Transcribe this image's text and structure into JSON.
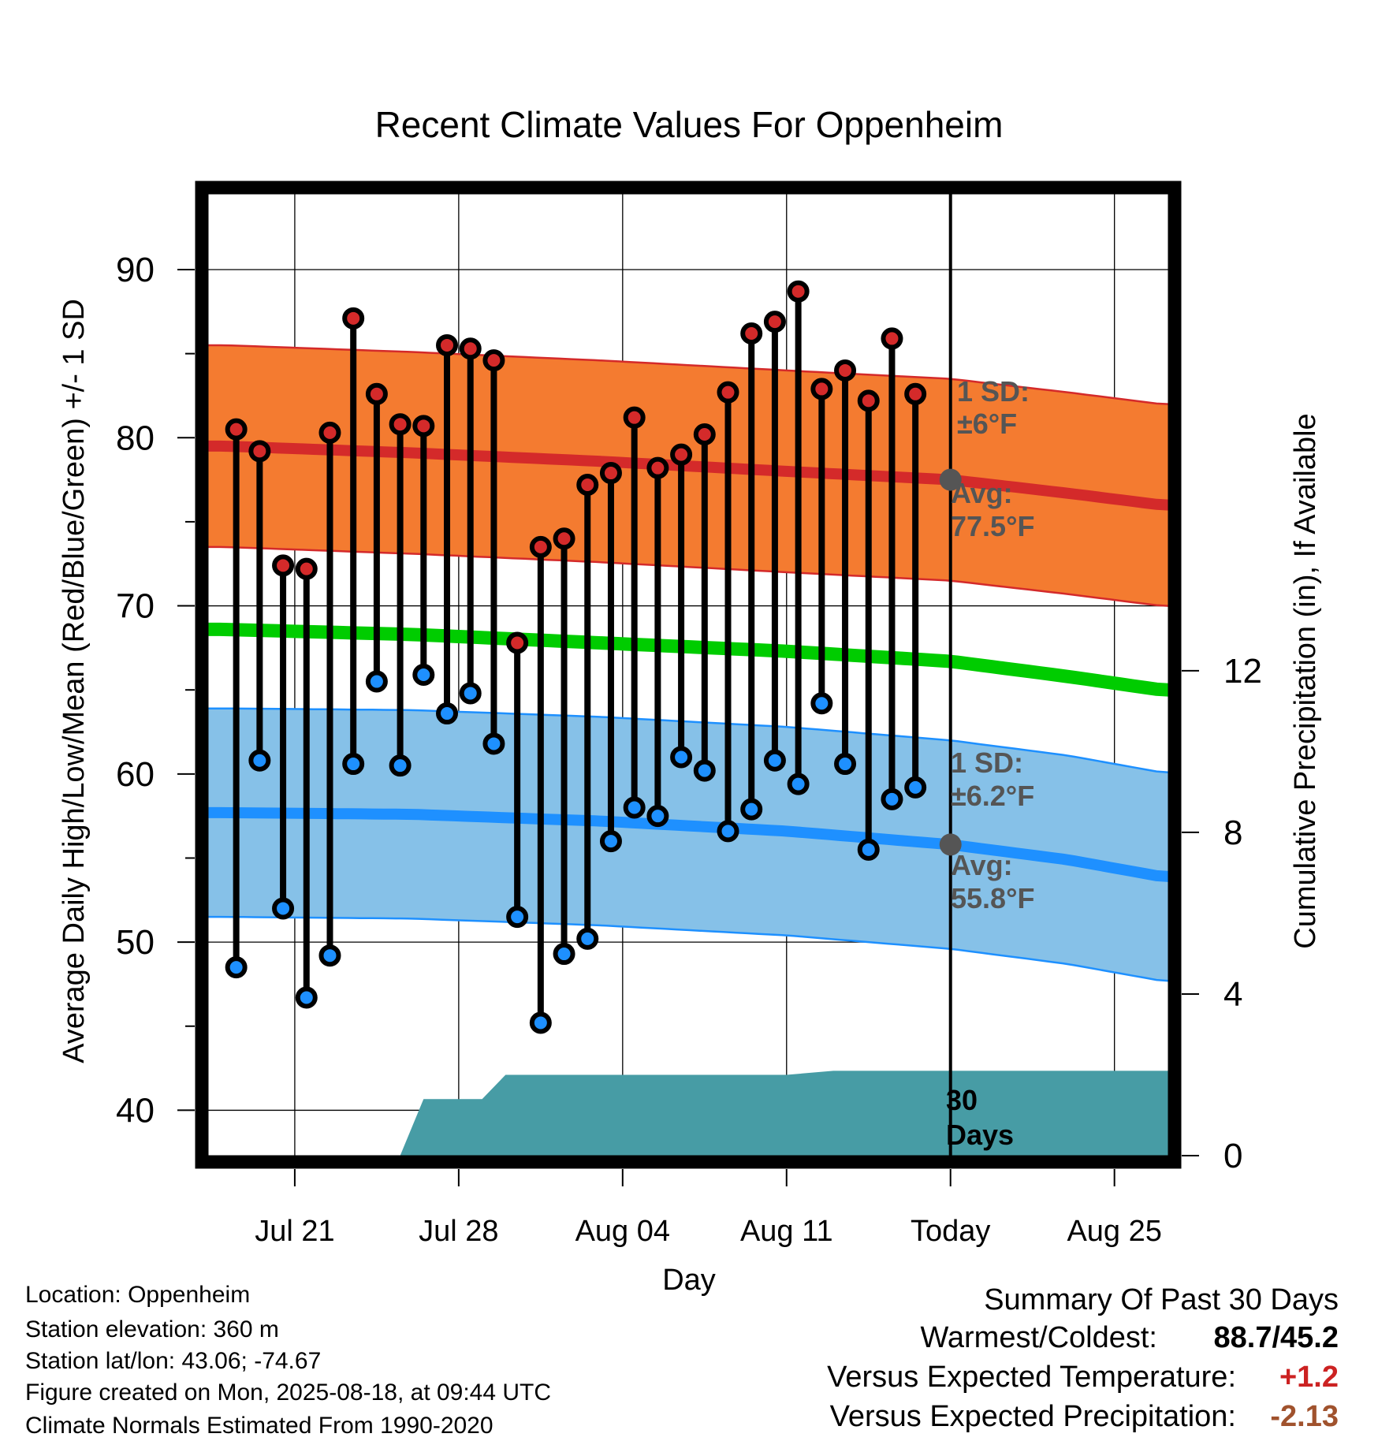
{
  "chart_data": {
    "type": "line",
    "title": "Recent Climate Values For Oppenheim",
    "xlabel": "Day",
    "ylabel_left": "Average Daily High/Low/Mean (Red/Blue/Green) +/- 1 SD",
    "ylabel_right": "Cumulative Precipitation (in), If Available",
    "y_left_ticks": [
      "40",
      "50",
      "60",
      "70",
      "80",
      "90"
    ],
    "y_right_ticks": [
      "0",
      "4",
      "8",
      "12"
    ],
    "x_ticks": [
      {
        "day": 3,
        "label": "Jul 21"
      },
      {
        "day": 10,
        "label": "Jul 28"
      },
      {
        "day": 17,
        "label": "Aug 04"
      },
      {
        "day": 24,
        "label": "Aug 11"
      },
      {
        "day": 31,
        "label": "Today"
      },
      {
        "day": 38,
        "label": "Aug 25"
      }
    ],
    "ylim_left": [
      37.3,
      94.5
    ],
    "ylim_right": [
      0,
      23.8
    ],
    "xlim": [
      -0.7,
      40.3
    ],
    "today_day": 31,
    "normals": {
      "days": [
        0,
        8,
        16,
        24,
        31,
        36,
        40
      ],
      "high_avg": [
        79.5,
        79.1,
        78.6,
        78.0,
        77.5,
        76.7,
        76.0
      ],
      "high_sd": 6,
      "mean_avg": [
        68.6,
        68.3,
        67.8,
        67.3,
        66.7,
        65.8,
        65.0
      ],
      "low_avg": [
        57.7,
        57.6,
        57.2,
        56.6,
        55.8,
        54.9,
        53.9
      ],
      "low_sd": 6.2
    },
    "series": [
      {
        "name": "High",
        "color": "#d42a2a",
        "values": [
          80.5,
          79.2,
          72.4,
          72.2,
          80.3,
          87.1,
          82.6,
          80.8,
          80.7,
          85.5,
          85.3,
          84.6,
          67.8,
          73.5,
          74.0,
          77.2,
          77.9,
          81.2,
          78.2,
          79.0,
          80.2,
          82.7,
          86.2,
          86.9,
          88.7,
          82.9,
          84.0,
          82.2,
          85.9,
          82.6
        ]
      },
      {
        "name": "Low",
        "color": "#1e90ff",
        "values": [
          48.5,
          60.8,
          52.0,
          46.7,
          49.2,
          60.6,
          65.5,
          60.5,
          65.9,
          63.6,
          64.8,
          61.8,
          51.5,
          45.2,
          49.3,
          50.2,
          56.0,
          58.0,
          57.5,
          61.0,
          60.2,
          56.6,
          57.9,
          60.8,
          59.4,
          64.2,
          60.6,
          55.5,
          58.5,
          59.2
        ]
      }
    ],
    "precip": {
      "days": [
        -0.7,
        7.5,
        8.5,
        11.0,
        12.0,
        16.0,
        24.0,
        26.0,
        30.5,
        40.3
      ],
      "values": [
        0,
        0,
        1.4,
        1.4,
        2.0,
        2.0,
        2.0,
        2.1,
        2.1,
        2.1
      ]
    },
    "annotations": {
      "high_sd_label": "1 SD:",
      "high_sd_value": "±6°F",
      "high_avg_label": "Avg:",
      "high_avg_value": "77.5°F",
      "low_sd_label": "1 SD:",
      "low_sd_value": "±6.2°F",
      "low_avg_label": "Avg:",
      "low_avg_value": "55.8°F",
      "precip_label_1": "30",
      "precip_label_2": "Days"
    },
    "colors": {
      "high_band": "#f47b30",
      "high_line": "#d42a2a",
      "mean_line": "#00cc00",
      "low_band": "#86c1e8",
      "low_line": "#1e90ff",
      "precip_fill": "#479ca5",
      "avg_marker": "#555555",
      "annotation_text": "#555555"
    }
  },
  "footer": {
    "location": "Location: Oppenheim",
    "elevation": "Station elevation: 360 m",
    "latlon": "Station lat/lon: 43.06; -74.67",
    "created": "Figure created on Mon, 2025-08-18, at 09:44 UTC",
    "normals": "Climate Normals Estimated From 1990-2020"
  },
  "summary": {
    "title": "Summary Of Past 30 Days",
    "warm_cold_label": "Warmest/Coldest:",
    "warm_cold_value": "88.7/45.2",
    "temp_label": "Versus Expected Temperature:",
    "temp_value": "+1.2",
    "temp_color": "#cc2222",
    "precip_label": "Versus Expected Precipitation:",
    "precip_value": "-2.13",
    "precip_color": "#a0522d"
  }
}
